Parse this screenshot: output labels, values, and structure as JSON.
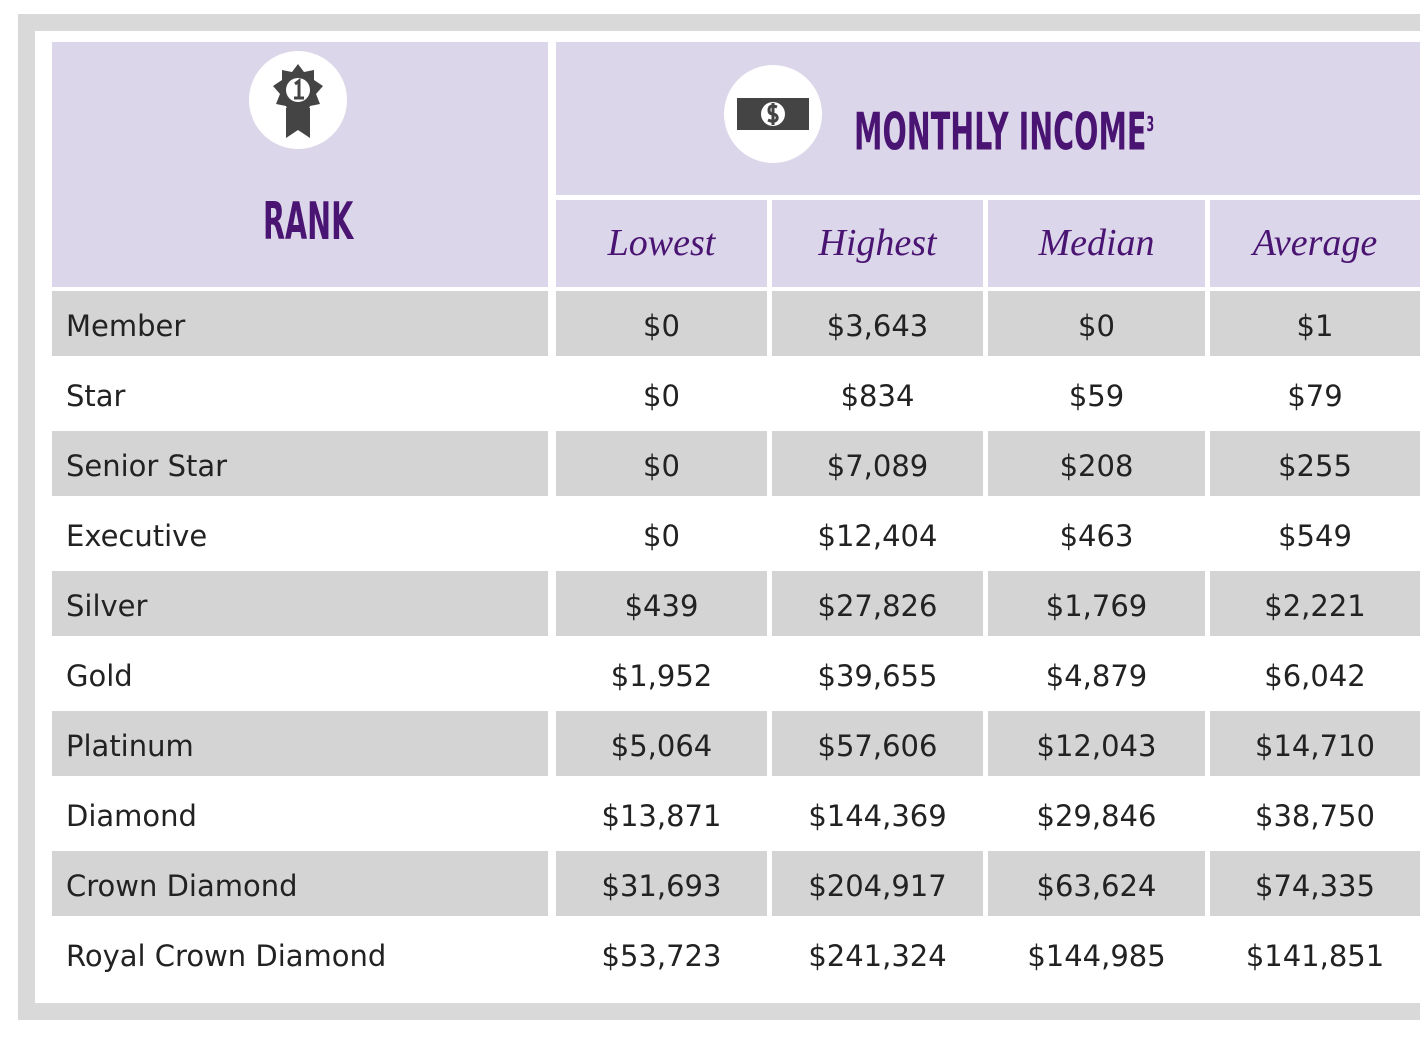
{
  "header": {
    "rank_title": "RANK",
    "income_title": "MONTHLY INCOME",
    "income_footnote": "3"
  },
  "columns": [
    "Lowest",
    "Highest",
    "Median",
    "Average"
  ],
  "rows": [
    {
      "rank": "Member",
      "values": [
        "$0",
        "$3,643",
        "$0",
        "$1"
      ]
    },
    {
      "rank": "Star",
      "values": [
        "$0",
        "$834",
        "$59",
        "$79"
      ]
    },
    {
      "rank": "Senior Star",
      "values": [
        "$0",
        "$7,089",
        "$208",
        "$255"
      ]
    },
    {
      "rank": "Executive",
      "values": [
        "$0",
        "$12,404",
        "$463",
        "$549"
      ]
    },
    {
      "rank": "Silver",
      "values": [
        "$439",
        "$27,826",
        "$1,769",
        "$2,221"
      ]
    },
    {
      "rank": "Gold",
      "values": [
        "$1,952",
        "$39,655",
        "$4,879",
        "$6,042"
      ]
    },
    {
      "rank": "Platinum",
      "values": [
        "$5,064",
        "$57,606",
        "$12,043",
        "$14,710"
      ]
    },
    {
      "rank": "Diamond",
      "values": [
        "$13,871",
        "$144,369",
        "$29,846",
        "$38,750"
      ]
    },
    {
      "rank": "Crown Diamond",
      "values": [
        "$31,693",
        "$204,917",
        "$63,624",
        "$74,335"
      ]
    },
    {
      "rank": "Royal Crown Diamond",
      "values": [
        "$53,723",
        "$241,324",
        "$144,985",
        "$141,851"
      ]
    }
  ]
}
